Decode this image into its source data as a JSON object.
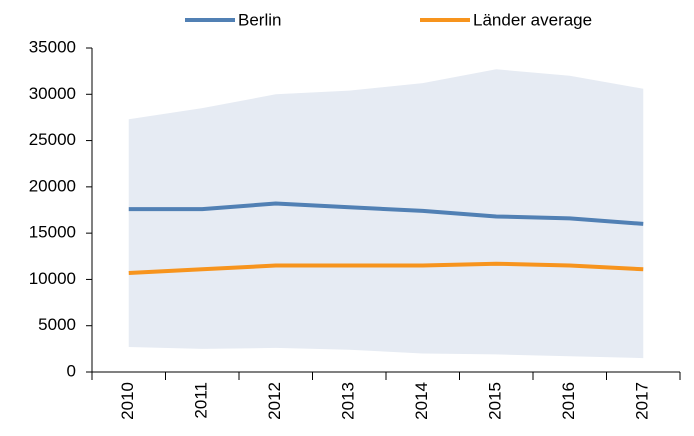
{
  "chart_data": {
    "type": "line",
    "categories": [
      "2010",
      "2011",
      "2012",
      "2013",
      "2014",
      "2015",
      "2016",
      "2017"
    ],
    "series": [
      {
        "name": "Berlin",
        "color": "#5180b4",
        "values": [
          17600,
          17600,
          18200,
          17800,
          17400,
          16800,
          16600,
          16000
        ]
      },
      {
        "name": "Länder average",
        "color": "#f7941d",
        "values": [
          10700,
          11100,
          11500,
          11500,
          11500,
          11700,
          11500,
          11100
        ]
      }
    ],
    "band": {
      "color": "#e6ebf3",
      "upper": [
        27300,
        28500,
        30000,
        30400,
        31200,
        32700,
        32000,
        30600
      ],
      "lower": [
        2700,
        2500,
        2600,
        2400,
        2000,
        1900,
        1700,
        1500
      ]
    },
    "ylim": [
      0,
      35000
    ],
    "yticks": [
      0,
      5000,
      10000,
      15000,
      20000,
      25000,
      30000,
      35000
    ],
    "legend": "top",
    "grid": false
  }
}
